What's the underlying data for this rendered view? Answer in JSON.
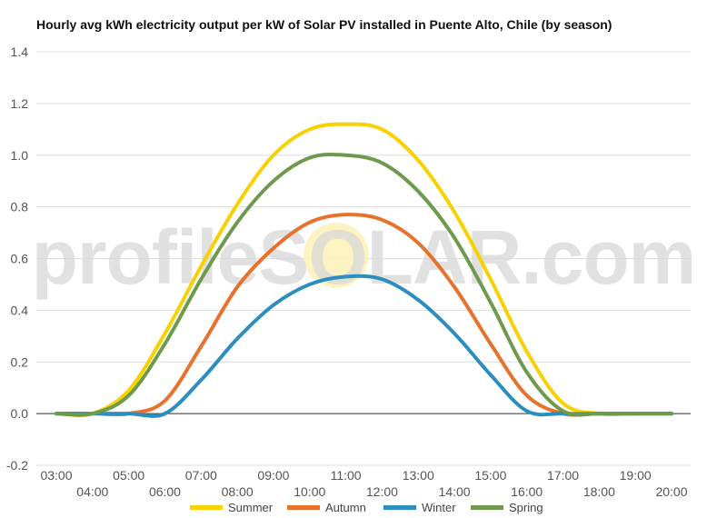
{
  "chart_data": {
    "type": "line",
    "title": "Hourly avg kWh electricity output per kW of Solar PV installed in Puente Alto, Chile (by season)",
    "xlabel": "",
    "ylabel": "",
    "ylim": [
      -0.2,
      1.4
    ],
    "y_ticks": [
      "1.4",
      "1.2",
      "1.0",
      "0.8",
      "0.6",
      "0.4",
      "0.2",
      "0.0",
      "-0.2"
    ],
    "x_ticks_upper": [
      "03:00",
      "05:00",
      "07:00",
      "09:00",
      "11:00",
      "13:00",
      "15:00",
      "17:00",
      "19:00"
    ],
    "x_ticks_lower": [
      "04:00",
      "06:00",
      "08:00",
      "10:00",
      "12:00",
      "14:00",
      "16:00",
      "18:00",
      "20:00"
    ],
    "categories": [
      "03:00",
      "04:00",
      "05:00",
      "06:00",
      "07:00",
      "08:00",
      "09:00",
      "10:00",
      "11:00",
      "12:00",
      "13:00",
      "14:00",
      "15:00",
      "16:00",
      "17:00",
      "18:00",
      "19:00",
      "20:00"
    ],
    "grid": true,
    "legend_position": "bottom",
    "watermark": "profileSOLAR.com",
    "series": [
      {
        "name": "Summer",
        "color": "#f7d100",
        "values": [
          0,
          0,
          0.09,
          0.31,
          0.57,
          0.81,
          1.0,
          1.1,
          1.12,
          1.1,
          0.98,
          0.78,
          0.52,
          0.24,
          0.04,
          0,
          0,
          0
        ]
      },
      {
        "name": "Autumn",
        "color": "#e8712b",
        "values": [
          0,
          0,
          0,
          0.05,
          0.26,
          0.49,
          0.64,
          0.74,
          0.77,
          0.75,
          0.66,
          0.49,
          0.27,
          0.07,
          0,
          0,
          0,
          0
        ]
      },
      {
        "name": "Winter",
        "color": "#2a8fc0",
        "values": [
          0,
          0,
          0,
          0,
          0.13,
          0.29,
          0.42,
          0.5,
          0.53,
          0.52,
          0.44,
          0.31,
          0.15,
          0.01,
          0,
          0,
          0,
          0
        ]
      },
      {
        "name": "Spring",
        "color": "#6e9a4e",
        "values": [
          0,
          0,
          0.07,
          0.27,
          0.52,
          0.74,
          0.9,
          0.99,
          1.0,
          0.97,
          0.86,
          0.68,
          0.43,
          0.16,
          0.01,
          0,
          0,
          0
        ]
      }
    ]
  }
}
